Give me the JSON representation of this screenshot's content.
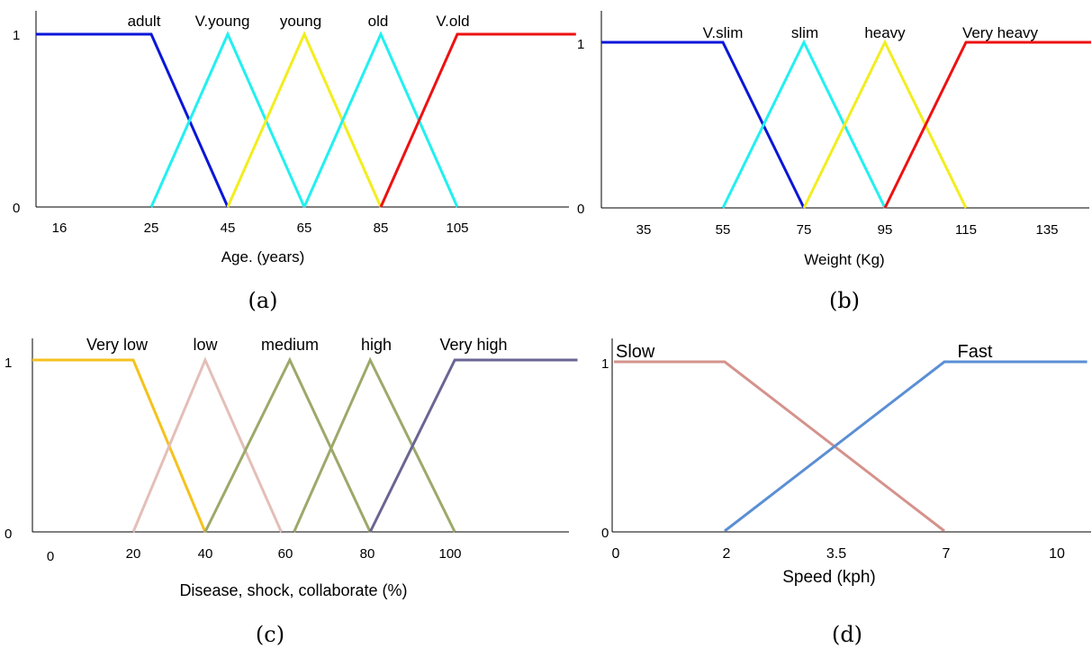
{
  "chart_data": [
    {
      "type": "line",
      "panel": "(a)",
      "xlabel": "Age. (years)",
      "x_ticks": [
        "16",
        "25",
        "45",
        "65",
        "85",
        "105"
      ],
      "y_ticks": [
        "1",
        "0"
      ],
      "ylim": [
        0,
        1
      ],
      "series": [
        {
          "name": "adult",
          "color": "#0a16d8",
          "points": [
            [
              0,
              1
            ],
            [
              1,
              1
            ],
            [
              2,
              0
            ]
          ]
        },
        {
          "name": "V.young",
          "color": "#22f0f0",
          "points": [
            [
              1,
              0
            ],
            [
              2,
              1
            ],
            [
              3,
              0
            ]
          ]
        },
        {
          "name": "young",
          "color": "#f2ee1e",
          "points": [
            [
              2,
              0
            ],
            [
              3,
              1
            ],
            [
              4,
              0
            ]
          ]
        },
        {
          "name": "old",
          "color": "#22f0f0",
          "points": [
            [
              3,
              0
            ],
            [
              4,
              1
            ],
            [
              5,
              0
            ]
          ]
        },
        {
          "name": "V.old",
          "color": "#ee1111",
          "points": [
            [
              4,
              0
            ],
            [
              5,
              1
            ],
            [
              6.55,
              1
            ]
          ]
        }
      ]
    },
    {
      "type": "line",
      "panel": "(b)",
      "xlabel": "Weight (Kg)",
      "x_ticks": [
        "35",
        "55",
        "75",
        "95",
        "115",
        "135"
      ],
      "y_ticks": [
        "1",
        "0"
      ],
      "ylim": [
        0,
        1
      ],
      "series": [
        {
          "name": "V.slim",
          "color": "#0a16d8",
          "points": [
            [
              -0.6,
              1
            ],
            [
              1,
              1
            ],
            [
              2,
              0
            ]
          ]
        },
        {
          "name": "slim",
          "color": "#22f0f0",
          "points": [
            [
              1,
              0
            ],
            [
              2,
              1
            ],
            [
              3,
              0
            ]
          ]
        },
        {
          "name": "heavy",
          "color": "#f2ee1e",
          "points": [
            [
              2,
              0
            ],
            [
              3,
              1
            ],
            [
              4,
              0
            ]
          ]
        },
        {
          "name": "Very heavy",
          "color": "#ee1111",
          "points": [
            [
              3,
              0
            ],
            [
              4,
              1
            ],
            [
              5.8,
              1
            ]
          ]
        }
      ]
    },
    {
      "type": "line",
      "panel": "(c)",
      "xlabel": "Disease, shock, collaborate (%)",
      "x_ticks": [
        "0",
        "20",
        "40",
        "60",
        "80",
        "100"
      ],
      "y_ticks": [
        "1",
        "0"
      ],
      "ylim": [
        0,
        1
      ],
      "series": [
        {
          "name": "Very low",
          "color": "#f5c21d",
          "points": [
            [
              -0.2,
              1
            ],
            [
              1.05,
              1
            ],
            [
              1.9,
              0
            ]
          ]
        },
        {
          "name": "low",
          "color": "#e3bfb8",
          "points": [
            [
              1.05,
              0
            ],
            [
              1.9,
              1
            ],
            [
              2.8,
              0
            ]
          ]
        },
        {
          "name": "medium",
          "color": "#9ca96a",
          "points": [
            [
              1.9,
              0
            ],
            [
              2.9,
              1
            ],
            [
              3.85,
              0
            ]
          ]
        },
        {
          "name": "high",
          "color": "#9ca96a",
          "points": [
            [
              2.95,
              0
            ],
            [
              3.85,
              1
            ],
            [
              4.85,
              0
            ]
          ]
        },
        {
          "name": "Very high",
          "color": "#6a6592",
          "points": [
            [
              3.85,
              0
            ],
            [
              4.85,
              1
            ],
            [
              6.3,
              1
            ]
          ]
        }
      ]
    },
    {
      "type": "line",
      "panel": "(d)",
      "xlabel": "Speed (kph)",
      "x_ticks": [
        "0",
        "2",
        "3.5",
        "7",
        "10"
      ],
      "y_ticks": [
        "1",
        "0"
      ],
      "ylim": [
        0,
        1
      ],
      "series": [
        {
          "name": "Slow",
          "color": "#d4938c",
          "points": [
            [
              0,
              1
            ],
            [
              1,
              1
            ],
            [
              3,
              0
            ]
          ]
        },
        {
          "name": "Fast",
          "color": "#5b8fd4",
          "points": [
            [
              1,
              0
            ],
            [
              3,
              1
            ],
            [
              4.3,
              1
            ]
          ]
        }
      ]
    }
  ]
}
